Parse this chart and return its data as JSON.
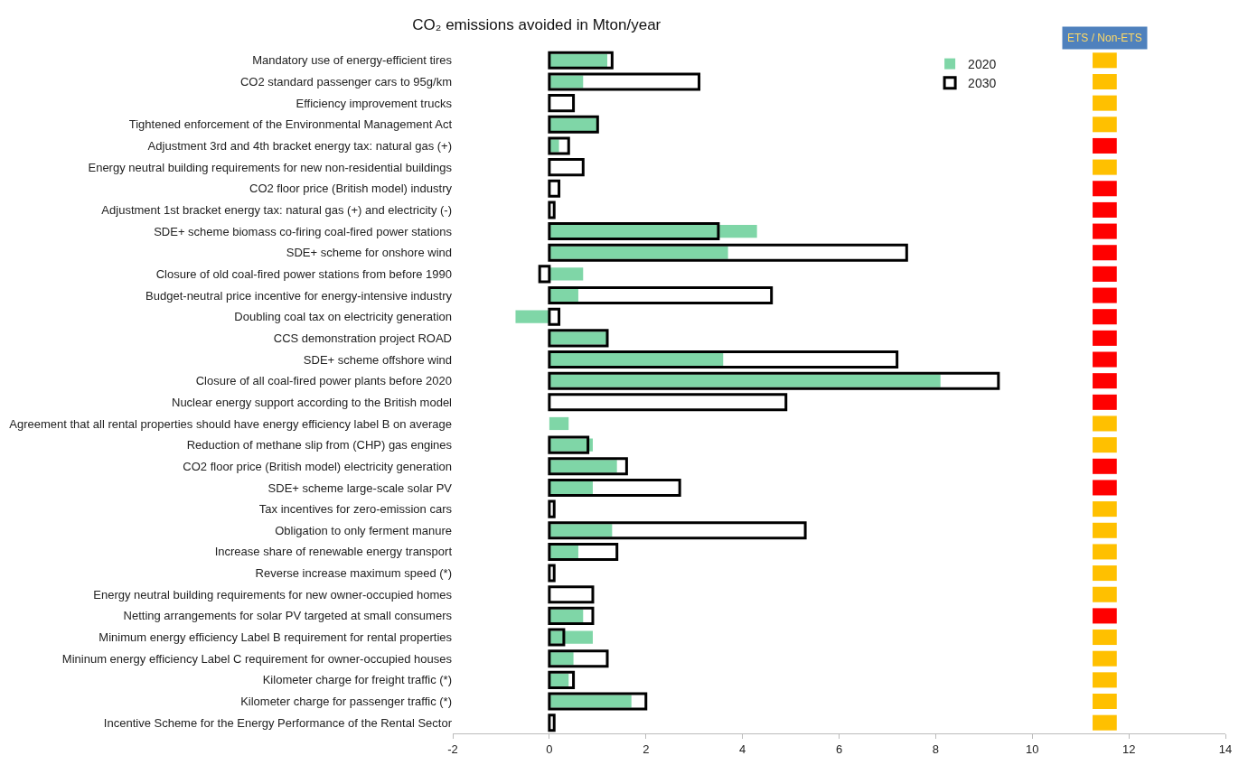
{
  "chart_data": {
    "type": "bar",
    "orientation": "horizontal",
    "title": "CO₂ emissions avoided in Mton/year",
    "categories": [
      "Mandatory use of energy-efficient tires",
      "CO2 standard passenger cars to 95g/km",
      "Efficiency improvement trucks",
      "Tightened enforcement of the Environmental Management Act",
      "Adjustment 3rd and 4th bracket energy tax: natural gas (+)",
      "Energy neutral building requirements for new non-residential buildings",
      "CO2 floor price (British model) industry",
      "Adjustment 1st bracket energy tax: natural gas (+) and electricity (-)",
      "SDE+ scheme biomass co-firing coal-fired power stations",
      "SDE+ scheme for onshore wind",
      "Closure of old coal-fired power stations from before 1990",
      "Budget-neutral price incentive for energy-intensive industry",
      "Doubling coal tax on electricity generation",
      "CCS demonstration project ROAD",
      "SDE+ scheme offshore wind",
      "Closure of all coal-fired power plants before 2020",
      "Nuclear energy support according to the British model",
      "Agreement that all rental properties should have energy efficiency label B on average",
      "Reduction of methane slip from (CHP) gas engines",
      "CO2 floor price (British model) electricity generation",
      "SDE+ scheme large-scale solar PV",
      "Tax incentives for zero-emission cars",
      "Obligation to only ferment manure",
      "Increase share of renewable energy transport",
      "Reverse increase maximum speed (*)",
      "Energy neutral building requirements for new owner-occupied homes",
      "Netting arrangements for solar PV targeted at small consumers",
      "Minimum energy efficiency Label B requirement for rental properties",
      "Mininum energy efficiency Label C requirement for owner-occupied houses",
      "Kilometer charge for freight traffic (*)",
      "Kilometer charge for passenger traffic (*)",
      "Incentive Scheme for the Energy Performance of the Rental Sector"
    ],
    "series": [
      {
        "name": "2020",
        "color": "#7fd6a7",
        "values": [
          1.2,
          0.7,
          null,
          1.0,
          0.2,
          null,
          null,
          null,
          4.3,
          3.7,
          0.7,
          0.6,
          -0.7,
          1.2,
          3.6,
          8.1,
          null,
          0.4,
          0.9,
          1.4,
          0.9,
          null,
          1.3,
          0.6,
          null,
          null,
          0.7,
          0.9,
          0.5,
          0.4,
          1.7,
          null
        ]
      },
      {
        "name": "2030",
        "color": "#000000",
        "values": [
          1.3,
          3.1,
          0.5,
          1.0,
          0.4,
          0.7,
          0.2,
          0.1,
          3.5,
          7.4,
          -0.2,
          4.6,
          0.2,
          1.2,
          7.2,
          9.3,
          4.9,
          null,
          0.8,
          1.6,
          2.7,
          0.1,
          5.3,
          1.4,
          0.1,
          0.9,
          0.9,
          0.3,
          1.2,
          0.5,
          2.0,
          0.1
        ]
      },
      {
        "base": [
          11.25,
          11.25,
          11.25,
          11.25,
          11.25,
          11.25,
          11.25,
          11.25,
          11.25,
          11.25,
          11.25,
          11.25,
          11.25,
          11.25,
          11.25,
          11.25,
          11.25,
          11.25,
          11.25,
          11.25,
          11.25,
          11.25,
          11.25,
          11.25,
          11.25,
          11.25,
          11.25,
          11.25,
          11.25,
          11.25,
          11.25,
          11.25
        ],
        "values": [
          0.5,
          0.5,
          0.5,
          0.5,
          0.5,
          0.5,
          0.5,
          0.5,
          0.5,
          0.5,
          0.5,
          0.5,
          0.5,
          0.5,
          0.5,
          0.5,
          0.5,
          0.5,
          0.5,
          0.5,
          0.5,
          0.5,
          0.5,
          0.5,
          0.5,
          0.5,
          0.5,
          0.5,
          0.5,
          0.5,
          0.5,
          0.5
        ],
        "colors": [
          "#ffc000",
          "#ffc000",
          "#ffc000",
          "#ffc000",
          "#ff0000",
          "#ffc000",
          "#ff0000",
          "#ff0000",
          "#ff0000",
          "#ff0000",
          "#ff0000",
          "#ff0000",
          "#ff0000",
          "#ff0000",
          "#ff0000",
          "#ff0000",
          "#ff0000",
          "#ffc000",
          "#ffc000",
          "#ff0000",
          "#ff0000",
          "#ffc000",
          "#ffc000",
          "#ffc000",
          "#ffc000",
          "#ffc000",
          "#ff0000",
          "#ffc000",
          "#ffc000",
          "#ffc000",
          "#ffc000",
          "#ffc000"
        ]
      }
    ],
    "annotations": [
      "ETS / Non-ETS"
    ],
    "xlim": [
      -2,
      14
    ],
    "xticks": [
      -2,
      0,
      2,
      4,
      6,
      8,
      10,
      12,
      14
    ],
    "legend": "top right"
  }
}
